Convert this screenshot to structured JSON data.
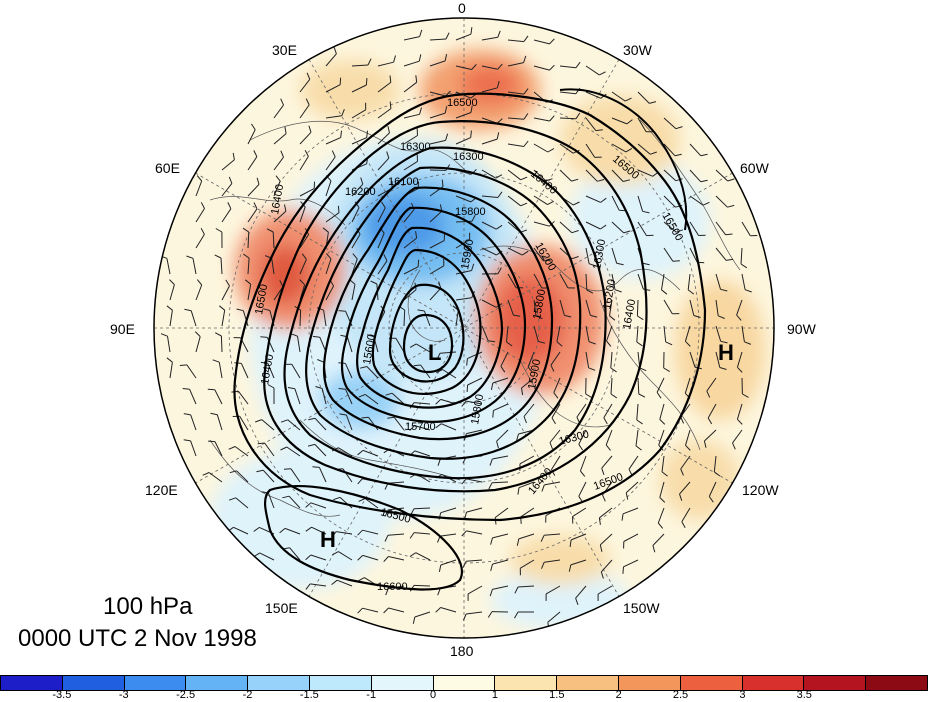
{
  "title": {
    "level": "100 hPa",
    "time": "0000 UTC 2 Nov 1998"
  },
  "longitude_labels": {
    "lon_0": "0",
    "lon_30w": "30W",
    "lon_60w": "60W",
    "lon_90w": "90W",
    "lon_120w": "120W",
    "lon_150w": "150W",
    "lon_180": "180",
    "lon_150e": "150E",
    "lon_120e": "120E",
    "lon_90e": "90E",
    "lon_60e": "60E",
    "lon_30e": "30E"
  },
  "pressure_centers": {
    "low": "L",
    "high_pacific": "H",
    "high_atlantic": "H"
  },
  "contour_labels": [
    "16500",
    "16300",
    "16300",
    "16200",
    "16100",
    "16400",
    "16500",
    "15800",
    "15900",
    "16200",
    "16300",
    "16500",
    "16400",
    "15800",
    "15900",
    "16200",
    "16400",
    "16500",
    "15600",
    "15700",
    "15800",
    "16300",
    "16400",
    "16500",
    "16500",
    "16600",
    "16400"
  ],
  "colorbar": {
    "colors": [
      "#1e1ec8",
      "#2060e0",
      "#3c8cf0",
      "#64b4f5",
      "#96d2fa",
      "#bee8fb",
      "#e2f6fc",
      "#fefbe4",
      "#fbe4b0",
      "#f7c080",
      "#f3965c",
      "#ec6040",
      "#d8302c",
      "#b41420",
      "#8c0a14"
    ],
    "ticks": [
      "-3.5",
      "-3",
      "-2.5",
      "-2",
      "-1.5",
      "-1",
      "0",
      "1",
      "1.5",
      "2",
      "2.5",
      "3",
      "3.5"
    ]
  }
}
